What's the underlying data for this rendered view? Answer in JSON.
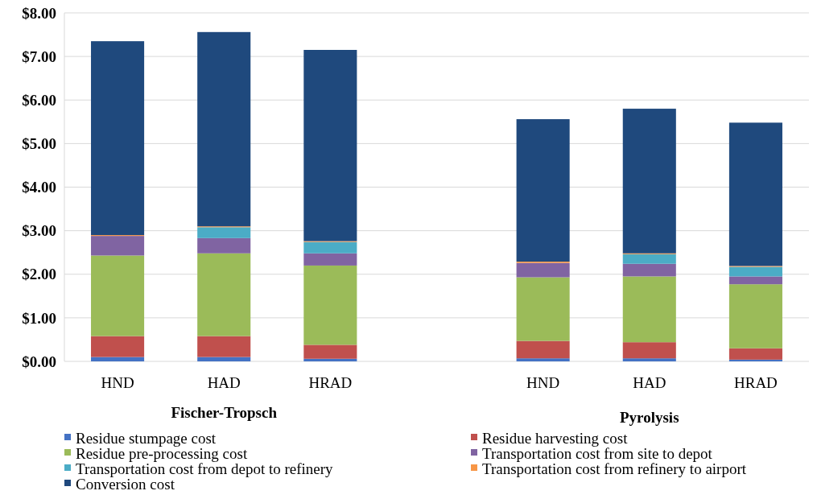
{
  "chart_data": {
    "type": "bar",
    "stacked": true,
    "categories": [
      "HND",
      "HAD",
      "HRAD",
      null,
      "HND",
      "HAD",
      "HRAD"
    ],
    "annotations": [
      "Fischer-Tropsch",
      "Pyrolysis"
    ],
    "ylim": [
      0,
      8
    ],
    "yticks": [
      {
        "value": 0,
        "label": "$0.00"
      },
      {
        "value": 1,
        "label": "$1.00"
      },
      {
        "value": 2,
        "label": "$2.00"
      },
      {
        "value": 3,
        "label": "$3.00"
      },
      {
        "value": 4,
        "label": "$4.00"
      },
      {
        "value": 5,
        "label": "$5.00"
      },
      {
        "value": 6,
        "label": "$6.00"
      },
      {
        "value": 7,
        "label": "$7.00"
      },
      {
        "value": 8,
        "label": "$8.00"
      }
    ],
    "grid": "y",
    "legend": "bottom",
    "series": [
      {
        "name": "Residue stumpage cost",
        "color": "#4472c4",
        "values": [
          0.1,
          0.1,
          0.06,
          null,
          0.07,
          0.07,
          0.04
        ]
      },
      {
        "name": "Residue harvesting cost",
        "color": "#c0504d",
        "values": [
          0.48,
          0.48,
          0.32,
          null,
          0.4,
          0.37,
          0.26
        ]
      },
      {
        "name": "Residue pre-processing cost",
        "color": "#9bbb59",
        "values": [
          1.85,
          1.9,
          1.82,
          null,
          1.46,
          1.51,
          1.47
        ]
      },
      {
        "name": "Transportation cost from site to depot",
        "color": "#8064a2",
        "values": [
          0.45,
          0.35,
          0.28,
          null,
          0.33,
          0.29,
          0.18
        ]
      },
      {
        "name": "Transportation cost from depot to refinery",
        "color": "#4bacc6",
        "values": [
          0,
          0.25,
          0.26,
          null,
          0,
          0.22,
          0.22
        ]
      },
      {
        "name": "Transportation cost from refinery to airport",
        "color": "#f79646",
        "values": [
          0.02,
          0.02,
          0.02,
          null,
          0.03,
          0.02,
          0.02
        ]
      },
      {
        "name": "Conversion cost",
        "color": "#1f497d",
        "values": [
          4.45,
          4.46,
          4.39,
          null,
          3.27,
          3.32,
          3.29
        ]
      }
    ]
  }
}
